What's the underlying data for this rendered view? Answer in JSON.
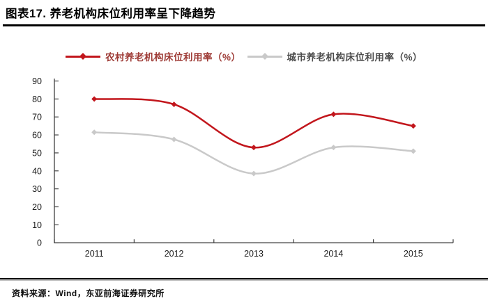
{
  "header": {
    "title": "图表17. 养老机构床位利用率呈下降趋势"
  },
  "footer": {
    "source": "资料来源：Wind，东亚前海证券研究所"
  },
  "colors": {
    "rural_line": "#C2161C",
    "urban_line": "#C9C9C9",
    "rural_legend_text": "#9E3B36",
    "urban_legend_text": "#4D4D4D",
    "axis": "#404040",
    "tick_label": "#1a1a1a",
    "rule": "#000000"
  },
  "chart_data": {
    "type": "line",
    "title": "养老机构床位利用率呈下降趋势",
    "categories": [
      "2011",
      "2012",
      "2013",
      "2014",
      "2015"
    ],
    "series": [
      {
        "name": "农村养老机构床位利用率（%）",
        "values": [
          80,
          77,
          53,
          71.5,
          65
        ],
        "color": "#C2161C",
        "label_color": "#9E3B36"
      },
      {
        "name": "城市养老机构床位利用率（%）",
        "values": [
          61.5,
          57.5,
          38.5,
          53,
          51
        ],
        "color": "#C9C9C9",
        "label_color": "#4D4D4D"
      }
    ],
    "xlabel": "",
    "ylabel": "",
    "ylim": [
      0,
      90
    ],
    "ytick_step": 10,
    "grid": false,
    "smooth": true,
    "marker": "diamond",
    "legend_position": "top-center"
  }
}
